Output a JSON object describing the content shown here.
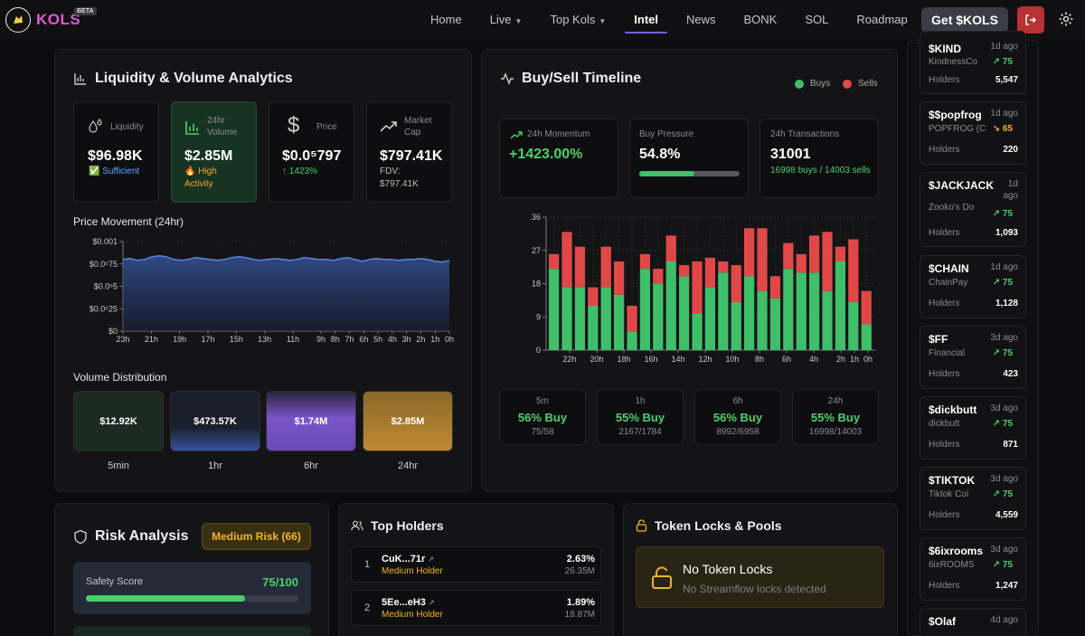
{
  "nav": {
    "logo": "KOLS",
    "beta": "BETA",
    "links": [
      {
        "label": "Home"
      },
      {
        "label": "Live",
        "dropdown": true
      },
      {
        "label": "Top Kols",
        "dropdown": true
      },
      {
        "label": "Intel",
        "active": true
      },
      {
        "label": "News"
      },
      {
        "label": "BONK"
      },
      {
        "label": "SOL"
      },
      {
        "label": "Roadmap"
      }
    ],
    "cta": "Get $KOLS"
  },
  "liquidity": {
    "title": "Liquidity & Volume Analytics",
    "stats": {
      "liq": {
        "label": "Liquidity",
        "value": "$96.98K",
        "sub": "✅ Sufficient"
      },
      "vol": {
        "label1": "24hr",
        "label2": "Volume",
        "value": "$2.85M",
        "sub1": "🔥 High",
        "sub2": "Activity"
      },
      "price": {
        "label": "Price",
        "value": "$0.0⁵797",
        "sub": "↑ 1423%"
      },
      "mcap": {
        "label1": "Market",
        "label2": "Cap",
        "value": "$797.41K",
        "sub1": "FDV:",
        "sub2": "$797.41K"
      }
    },
    "price_title": "Price Movement (24hr)",
    "vol_title": "Volume Distribution",
    "volumes": [
      {
        "value": "$12.92K",
        "period": "5min"
      },
      {
        "value": "$473.57K",
        "period": "1hr"
      },
      {
        "value": "$1.74M",
        "period": "6hr"
      },
      {
        "value": "$2.85M",
        "period": "24hr"
      }
    ]
  },
  "price_chart": {
    "type": "area",
    "y_ticks": [
      "$0.001",
      "$0.0⁵75",
      "$0.0⁵5",
      "$0.0⁵25",
      "$0"
    ],
    "x_ticks": [
      "23h",
      "21h",
      "19h",
      "17h",
      "15h",
      "13h",
      "11h",
      "9h",
      "8h",
      "7h",
      "6h",
      "5h",
      "4h",
      "3h",
      "2h",
      "1h",
      "0h"
    ],
    "series_norm": [
      0.8,
      0.81,
      0.79,
      0.8,
      0.83,
      0.84,
      0.83,
      0.8,
      0.79,
      0.8,
      0.82,
      0.81,
      0.8,
      0.79,
      0.8,
      0.82,
      0.83,
      0.82,
      0.8,
      0.79,
      0.8,
      0.81,
      0.8,
      0.79,
      0.8,
      0.82,
      0.81,
      0.8,
      0.8,
      0.79,
      0.81,
      0.82,
      0.8,
      0.78,
      0.8,
      0.81,
      0.8,
      0.8,
      0.79,
      0.8,
      0.8,
      0.81,
      0.8,
      0.78,
      0.77,
      0.79
    ]
  },
  "timeline": {
    "title": "Buy/Sell Timeline",
    "legend_buys": "Buys",
    "legend_sells": "Sells",
    "buy_color": "#3fbf6a",
    "sell_color": "#e04848",
    "momentum": {
      "label": "24h Momentum",
      "value": "+1423.00%"
    },
    "pressure": {
      "label": "Buy Pressure",
      "value": "54.8%",
      "fraction": 0.548
    },
    "tx": {
      "label": "24h Transactions",
      "value": "31001",
      "sub": "16998 buys / 14003 sells"
    },
    "ratios": [
      {
        "period": "5m",
        "value": "56% Buy",
        "counts": "75/58"
      },
      {
        "period": "1h",
        "value": "55% Buy",
        "counts": "2167/1784"
      },
      {
        "period": "6h",
        "value": "56% Buy",
        "counts": "8992/6958"
      },
      {
        "period": "24h",
        "value": "55% Buy",
        "counts": "16998/14003"
      }
    ]
  },
  "chart_data": {
    "type": "bar",
    "stacked": true,
    "y_ticks": [
      0,
      9,
      18,
      27,
      36
    ],
    "ylim": [
      0,
      36
    ],
    "x_tick_labels": [
      "22h",
      "20h",
      "18h",
      "16h",
      "14h",
      "12h",
      "10h",
      "8h",
      "6h",
      "4h",
      "2h",
      "1h",
      "0h"
    ],
    "series": [
      {
        "name": "Buys",
        "values": [
          22,
          17,
          17,
          12,
          17,
          15,
          5,
          22,
          18,
          24,
          20,
          10,
          17,
          21,
          13,
          20,
          16,
          14,
          22,
          21,
          21,
          16,
          24,
          13,
          7
        ]
      },
      {
        "name": "Sells",
        "values": [
          4,
          15,
          11,
          5,
          11,
          9,
          7,
          4,
          4,
          7,
          3,
          14,
          8,
          3,
          10,
          13,
          17,
          6,
          7,
          5,
          10,
          16,
          4,
          17,
          9
        ]
      }
    ]
  },
  "sidebar": [
    {
      "sym": "$KIND",
      "age": "1d ago",
      "name": "KindnessCo",
      "score": "↗ 75",
      "up": true,
      "holders_label": "Holders",
      "holders": "5,547"
    },
    {
      "sym": "$$popfrog",
      "age": "1d ago",
      "name": "POPFROG (C",
      "score": "↘ 65",
      "up": false,
      "holders_label": "Holders",
      "holders": "220"
    },
    {
      "sym": "$JACKJACK",
      "age": "1d ago",
      "name": "Zooko's Do",
      "score": "↗ 75",
      "up": true,
      "holders_label": "Holders",
      "holders": "1,093"
    },
    {
      "sym": "$CHAIN",
      "age": "1d ago",
      "name": "ChainPay",
      "score": "↗ 75",
      "up": true,
      "holders_label": "Holders",
      "holders": "1,128"
    },
    {
      "sym": "$FF",
      "age": "3d ago",
      "name": "Financial",
      "score": "↗ 75",
      "up": true,
      "holders_label": "Holders",
      "holders": "423"
    },
    {
      "sym": "$dickbutt",
      "age": "3d ago",
      "name": "dickbutt",
      "score": "↗ 75",
      "up": true,
      "holders_label": "Holders",
      "holders": "871"
    },
    {
      "sym": "$TIKTOK",
      "age": "3d ago",
      "name": "Tiktok Coi",
      "score": "↗ 75",
      "up": true,
      "holders_label": "Holders",
      "holders": "4,559"
    },
    {
      "sym": "$6ixrooms",
      "age": "3d ago",
      "name": "6ixROOMS",
      "score": "↗ 75",
      "up": true,
      "holders_label": "Holders",
      "holders": "1,247"
    },
    {
      "sym": "$Olaf",
      "age": "4d ago",
      "name": "",
      "score": "",
      "up": true,
      "holders_label": "",
      "holders": ""
    }
  ],
  "risk": {
    "title": "Risk Analysis",
    "badge": "Medium Risk (66)",
    "safety_label": "Safety Score",
    "safety_value": "75/100",
    "safety_fraction": 0.75
  },
  "holders": {
    "title": "Top Holders",
    "rows": [
      {
        "rank": "1",
        "addr": "CuK...71r",
        "tag": "Medium Holder",
        "pct": "2.63%",
        "amount": "26.35M"
      },
      {
        "rank": "2",
        "addr": "5Ee...eH3",
        "tag": "Medium Holder",
        "pct": "1.89%",
        "amount": "18.87M"
      }
    ]
  },
  "locks": {
    "title": "Token Locks & Pools",
    "heading": "No Token Locks",
    "sub": "No Streamflow locks detected"
  }
}
